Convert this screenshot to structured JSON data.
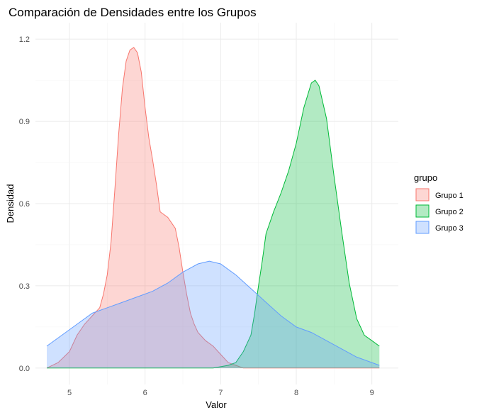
{
  "chart_data": {
    "type": "area",
    "title": "Comparación de Densidades entre los Grupos",
    "xlabel": "Valor",
    "ylabel": "Densidad",
    "xlim": [
      4.55,
      9.35
    ],
    "ylim": [
      -0.06,
      1.26
    ],
    "x_ticks": [
      5,
      6,
      7,
      8,
      9
    ],
    "x_tick_labels": [
      "5",
      "6",
      "7",
      "8",
      "9"
    ],
    "y_ticks": [
      0.0,
      0.3,
      0.6,
      0.9,
      1.2
    ],
    "y_tick_labels": [
      "0.0",
      "0.3",
      "0.6",
      "0.9",
      "1.2"
    ],
    "grid": true,
    "legend": {
      "title": "grupo",
      "position": "right"
    },
    "series": [
      {
        "name": "Grupo 1",
        "color": "#F8766D",
        "fill": "#F8766D",
        "x": [
          4.7,
          4.85,
          5.0,
          5.1,
          5.2,
          5.3,
          5.4,
          5.45,
          5.5,
          5.55,
          5.6,
          5.65,
          5.7,
          5.75,
          5.8,
          5.85,
          5.9,
          5.95,
          6.0,
          6.05,
          6.1,
          6.15,
          6.2,
          6.3,
          6.4,
          6.45,
          6.5,
          6.55,
          6.6,
          6.65,
          6.7,
          6.8,
          6.9,
          7.0,
          7.1,
          7.2,
          7.3,
          7.5,
          8.0,
          8.5,
          9.1
        ],
        "y": [
          0.0,
          0.02,
          0.06,
          0.12,
          0.16,
          0.19,
          0.22,
          0.27,
          0.34,
          0.46,
          0.65,
          0.85,
          1.02,
          1.12,
          1.16,
          1.17,
          1.15,
          1.08,
          0.95,
          0.84,
          0.76,
          0.67,
          0.57,
          0.55,
          0.51,
          0.44,
          0.35,
          0.27,
          0.2,
          0.16,
          0.13,
          0.1,
          0.08,
          0.05,
          0.02,
          0.01,
          0.0,
          0.0,
          0.0,
          0.0,
          0.0
        ]
      },
      {
        "name": "Grupo 2",
        "color": "#00BA38",
        "fill": "#00BA38",
        "x": [
          4.7,
          6.5,
          6.9,
          7.1,
          7.2,
          7.3,
          7.4,
          7.45,
          7.5,
          7.55,
          7.6,
          7.7,
          7.8,
          7.9,
          8.0,
          8.1,
          8.2,
          8.25,
          8.3,
          8.4,
          8.5,
          8.6,
          8.7,
          8.8,
          8.9,
          9.0,
          9.1
        ],
        "y": [
          0.0,
          0.0,
          0.0,
          0.01,
          0.02,
          0.06,
          0.12,
          0.2,
          0.3,
          0.39,
          0.49,
          0.57,
          0.64,
          0.72,
          0.82,
          0.95,
          1.04,
          1.05,
          1.03,
          0.91,
          0.7,
          0.5,
          0.31,
          0.18,
          0.12,
          0.1,
          0.08
        ]
      },
      {
        "name": "Grupo 3",
        "color": "#619CFF",
        "fill": "#619CFF",
        "x": [
          4.7,
          4.9,
          5.1,
          5.3,
          5.5,
          5.7,
          5.9,
          6.1,
          6.3,
          6.5,
          6.7,
          6.85,
          7.0,
          7.2,
          7.4,
          7.6,
          7.8,
          8.0,
          8.2,
          8.4,
          8.6,
          8.8,
          9.0,
          9.1
        ],
        "y": [
          0.08,
          0.12,
          0.16,
          0.2,
          0.22,
          0.24,
          0.26,
          0.28,
          0.31,
          0.35,
          0.38,
          0.39,
          0.38,
          0.34,
          0.29,
          0.24,
          0.19,
          0.15,
          0.13,
          0.1,
          0.07,
          0.04,
          0.02,
          0.01
        ]
      }
    ]
  }
}
